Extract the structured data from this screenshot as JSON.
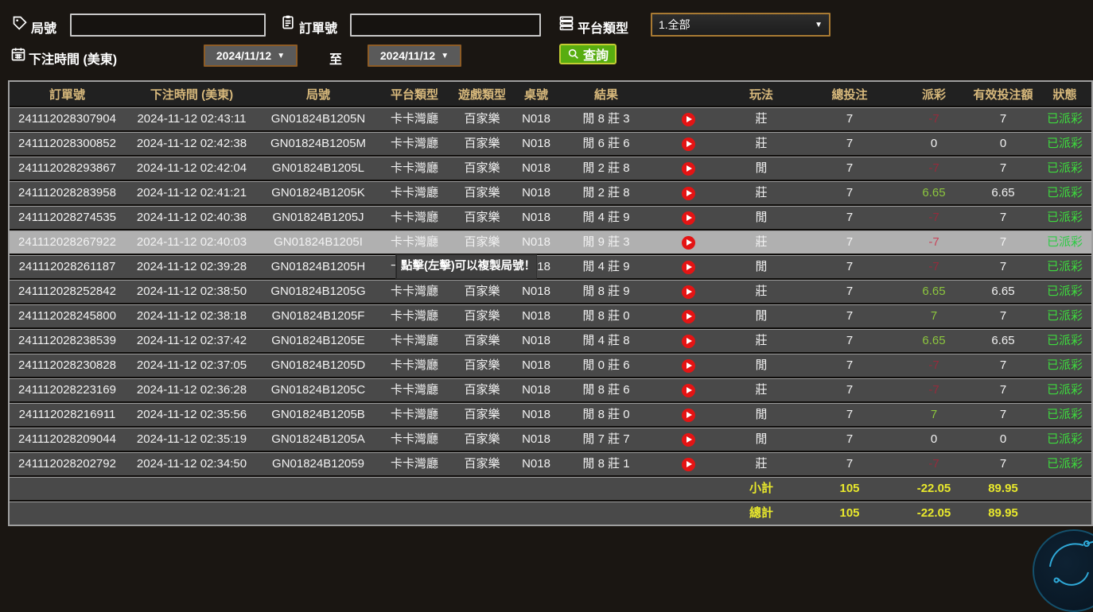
{
  "filters": {
    "game_no": {
      "label": "局號",
      "value": ""
    },
    "order_no": {
      "label": "訂單號",
      "value": ""
    },
    "platform": {
      "label": "平台類型",
      "selected": "1.全部"
    },
    "bet_time": {
      "label": "下注時間 (美東)",
      "from": "2024/11/12",
      "to_separator": "至",
      "to": "2024/11/12"
    },
    "search_label": "查詢"
  },
  "tooltip": {
    "text": "點擊(左擊)可以複製局號！"
  },
  "colors": {
    "header_text": "#d8b97c",
    "payout_negative": "#952b3c",
    "payout_positive": "#8cc63e",
    "status_paid_green": "#3ddc3d",
    "totals_yellow": "#e9e92c",
    "search_button_green": "#58ad10",
    "play_button_red": "#e41414",
    "date_border_brown": "#8d5c26"
  },
  "table": {
    "columns": [
      "訂單號",
      "下注時間 (美東)",
      "局號",
      "平台類型",
      "遊戲類型",
      "桌號",
      "結果",
      "",
      "玩法",
      "總投注",
      "派彩",
      "有效投注額",
      "狀態"
    ],
    "rows": [
      {
        "order": "241112028307904",
        "time": "2024-11-12 02:43:11",
        "game": "GN01824B1205N",
        "platform": "卡卡灣廳",
        "game_type": "百家樂",
        "table_no": "N018",
        "result": "閒 8 莊 3",
        "bet": "莊",
        "total": "7",
        "payout": "-7",
        "payout_class": "neg",
        "valid": "7",
        "status": "已派彩"
      },
      {
        "order": "241112028300852",
        "time": "2024-11-12 02:42:38",
        "game": "GN01824B1205M",
        "platform": "卡卡灣廳",
        "game_type": "百家樂",
        "table_no": "N018",
        "result": "閒 6 莊 6",
        "bet": "莊",
        "total": "7",
        "payout": "0",
        "payout_class": "zero",
        "valid": "0",
        "status": "已派彩"
      },
      {
        "order": "241112028293867",
        "time": "2024-11-12 02:42:04",
        "game": "GN01824B1205L",
        "platform": "卡卡灣廳",
        "game_type": "百家樂",
        "table_no": "N018",
        "result": "閒 2 莊 8",
        "bet": "閒",
        "total": "7",
        "payout": "-7",
        "payout_class": "neg",
        "valid": "7",
        "status": "已派彩"
      },
      {
        "order": "241112028283958",
        "time": "2024-11-12 02:41:21",
        "game": "GN01824B1205K",
        "platform": "卡卡灣廳",
        "game_type": "百家樂",
        "table_no": "N018",
        "result": "閒 2 莊 8",
        "bet": "莊",
        "total": "7",
        "payout": "6.65",
        "payout_class": "pos",
        "valid": "6.65",
        "status": "已派彩"
      },
      {
        "order": "241112028274535",
        "time": "2024-11-12 02:40:38",
        "game": "GN01824B1205J",
        "platform": "卡卡灣廳",
        "game_type": "百家樂",
        "table_no": "N018",
        "result": "閒 4 莊 9",
        "bet": "閒",
        "total": "7",
        "payout": "-7",
        "payout_class": "neg",
        "valid": "7",
        "status": "已派彩"
      },
      {
        "order": "241112028267922",
        "time": "2024-11-12 02:40:03",
        "game": "GN01824B1205I",
        "platform": "卡卡灣廳",
        "game_type": "百家樂",
        "table_no": "N018",
        "result": "閒 9 莊 3",
        "bet": "莊",
        "total": "7",
        "payout": "-7",
        "payout_class": "neg",
        "valid": "7",
        "status": "已派彩",
        "highlighted": true
      },
      {
        "order": "241112028261187",
        "time": "2024-11-12 02:39:28",
        "game": "GN01824B1205H",
        "platform": "卡卡灣廳",
        "game_type": "百家樂",
        "table_no": "N018",
        "result": "閒 4 莊 9",
        "bet": "閒",
        "total": "7",
        "payout": "-7",
        "payout_class": "neg",
        "valid": "7",
        "status": "已派彩",
        "tooltip": true
      },
      {
        "order": "241112028252842",
        "time": "2024-11-12 02:38:50",
        "game": "GN01824B1205G",
        "platform": "卡卡灣廳",
        "game_type": "百家樂",
        "table_no": "N018",
        "result": "閒 8 莊 9",
        "bet": "莊",
        "total": "7",
        "payout": "6.65",
        "payout_class": "pos",
        "valid": "6.65",
        "status": "已派彩"
      },
      {
        "order": "241112028245800",
        "time": "2024-11-12 02:38:18",
        "game": "GN01824B1205F",
        "platform": "卡卡灣廳",
        "game_type": "百家樂",
        "table_no": "N018",
        "result": "閒 8 莊 0",
        "bet": "閒",
        "total": "7",
        "payout": "7",
        "payout_class": "pos",
        "valid": "7",
        "status": "已派彩"
      },
      {
        "order": "241112028238539",
        "time": "2024-11-12 02:37:42",
        "game": "GN01824B1205E",
        "platform": "卡卡灣廳",
        "game_type": "百家樂",
        "table_no": "N018",
        "result": "閒 4 莊 8",
        "bet": "莊",
        "total": "7",
        "payout": "6.65",
        "payout_class": "pos",
        "valid": "6.65",
        "status": "已派彩"
      },
      {
        "order": "241112028230828",
        "time": "2024-11-12 02:37:05",
        "game": "GN01824B1205D",
        "platform": "卡卡灣廳",
        "game_type": "百家樂",
        "table_no": "N018",
        "result": "閒 0 莊 6",
        "bet": "閒",
        "total": "7",
        "payout": "-7",
        "payout_class": "neg",
        "valid": "7",
        "status": "已派彩"
      },
      {
        "order": "241112028223169",
        "time": "2024-11-12 02:36:28",
        "game": "GN01824B1205C",
        "platform": "卡卡灣廳",
        "game_type": "百家樂",
        "table_no": "N018",
        "result": "閒 8 莊 6",
        "bet": "莊",
        "total": "7",
        "payout": "-7",
        "payout_class": "neg",
        "valid": "7",
        "status": "已派彩"
      },
      {
        "order": "241112028216911",
        "time": "2024-11-12 02:35:56",
        "game": "GN01824B1205B",
        "platform": "卡卡灣廳",
        "game_type": "百家樂",
        "table_no": "N018",
        "result": "閒 8 莊 0",
        "bet": "閒",
        "total": "7",
        "payout": "7",
        "payout_class": "pos",
        "valid": "7",
        "status": "已派彩"
      },
      {
        "order": "241112028209044",
        "time": "2024-11-12 02:35:19",
        "game": "GN01824B1205A",
        "platform": "卡卡灣廳",
        "game_type": "百家樂",
        "table_no": "N018",
        "result": "閒 7 莊 7",
        "bet": "閒",
        "total": "7",
        "payout": "0",
        "payout_class": "zero",
        "valid": "0",
        "status": "已派彩"
      },
      {
        "order": "241112028202792",
        "time": "2024-11-12 02:34:50",
        "game": "GN01824B12059",
        "platform": "卡卡灣廳",
        "game_type": "百家樂",
        "table_no": "N018",
        "result": "閒 8 莊 1",
        "bet": "莊",
        "total": "7",
        "payout": "-7",
        "payout_class": "neg",
        "valid": "7",
        "status": "已派彩"
      }
    ],
    "subtotal": {
      "label": "小計",
      "total_bet": "105",
      "payout": "-22.05",
      "valid_bet": "89.95"
    },
    "grand_total": {
      "label": "總計",
      "total_bet": "105",
      "payout": "-22.05",
      "valid_bet": "89.95"
    }
  }
}
